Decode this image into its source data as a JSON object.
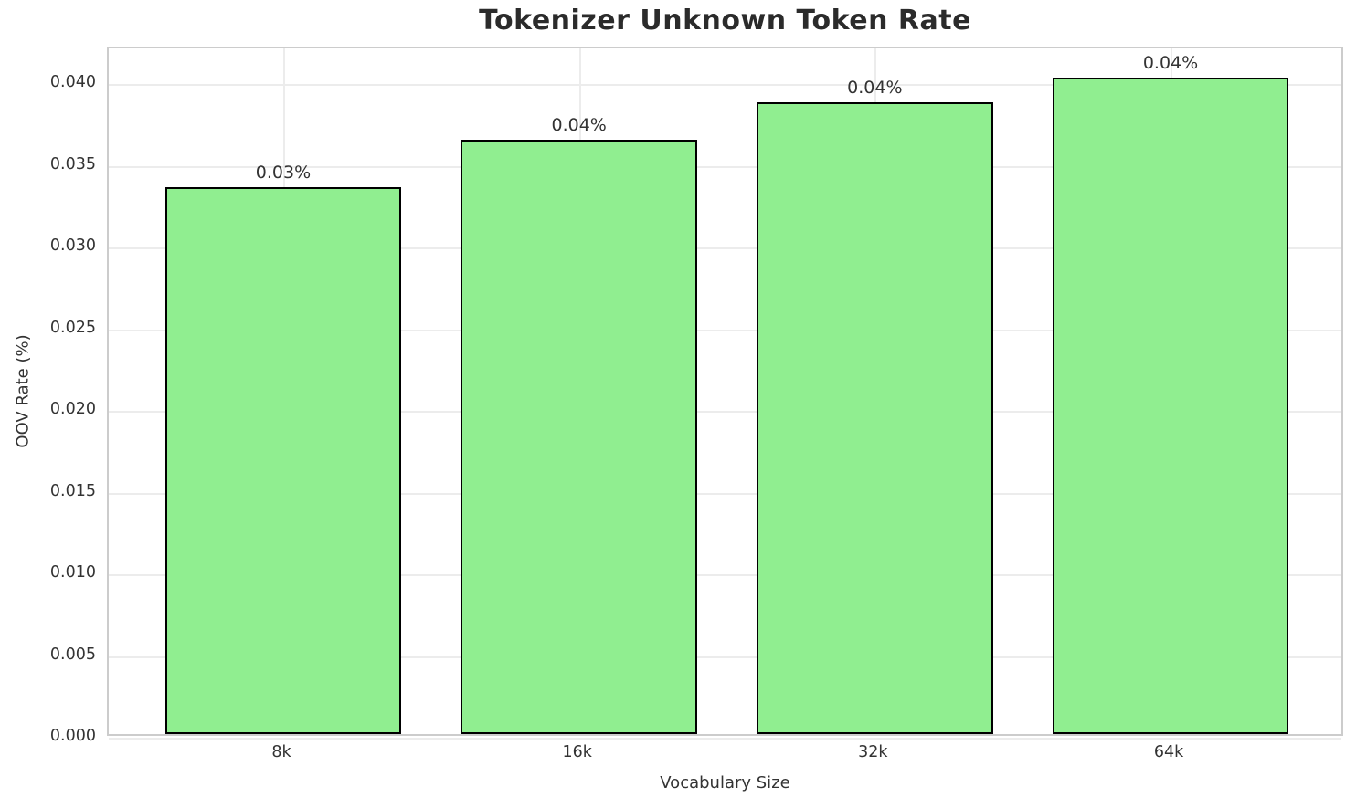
{
  "chart_data": {
    "type": "bar",
    "title": "Tokenizer Unknown Token Rate",
    "xlabel": "Vocabulary Size",
    "ylabel": "OOV Rate (%)",
    "categories": [
      "8k",
      "16k",
      "32k",
      "64k"
    ],
    "values": [
      0.0335,
      0.0364,
      0.0387,
      0.0402
    ],
    "bar_labels": [
      "0.03%",
      "0.04%",
      "0.04%",
      "0.04%"
    ],
    "ylim": [
      0,
      0.0422
    ],
    "yticks": [
      0,
      0.005,
      0.01,
      0.015,
      0.02,
      0.025,
      0.03,
      0.035,
      0.04
    ],
    "ytick_labels": [
      "0.000",
      "0.005",
      "0.010",
      "0.015",
      "0.020",
      "0.025",
      "0.030",
      "0.035",
      "0.040"
    ],
    "grid": true,
    "legend_position": "none",
    "colors": {
      "bar_fill": "#90EE90",
      "bar_edge": "#000000",
      "grid_line": "#ececec",
      "spine": "#cccccc",
      "tick_text": "#333333",
      "title_text": "#2b2b2b",
      "background": "#ffffff"
    }
  }
}
